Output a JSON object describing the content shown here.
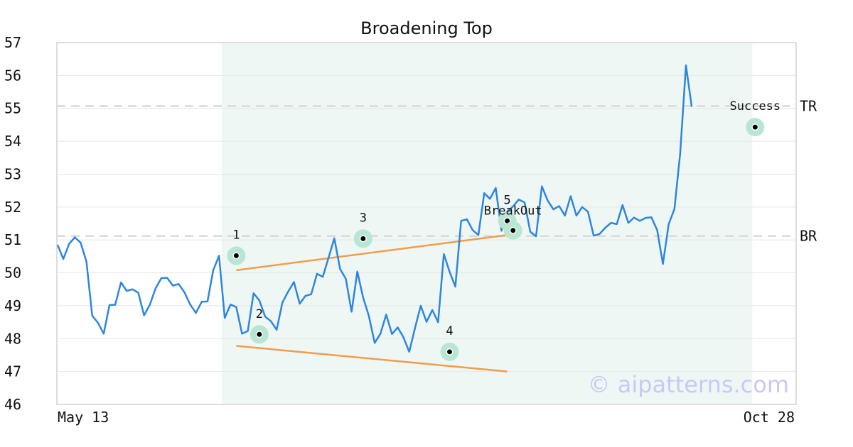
{
  "chart_data": {
    "type": "line",
    "title": "Broadening Top",
    "xlabel": "",
    "ylabel": "",
    "ylim": [
      46,
      57
    ],
    "yticks": [
      46,
      47,
      48,
      49,
      50,
      51,
      52,
      53,
      54,
      55,
      56,
      57
    ],
    "x_tick_labels": [
      "May 13",
      "Oct 28"
    ],
    "grid": true,
    "colors": {
      "price": "#2e86de",
      "trendline": "#f39c4a",
      "pattern_zone": "#eef7f3",
      "marker_halo": "#b9e6d2",
      "marker_dot": "#000000",
      "level_line": "#d9d9d9",
      "watermark": "#c9c9f5"
    },
    "series": [
      {
        "values": [
          50.85,
          50.42,
          50.88,
          51.08,
          50.92,
          50.34,
          48.7,
          48.48,
          48.15,
          49.02,
          49.03,
          49.71,
          49.45,
          49.5,
          49.4,
          48.71,
          49.03,
          49.53,
          49.84,
          49.85,
          49.61,
          49.66,
          49.41,
          49.04,
          48.78,
          49.12,
          49.13,
          50.08,
          50.52,
          48.63,
          49.04,
          48.96,
          48.15,
          48.23,
          49.38,
          49.16,
          48.67,
          48.53,
          48.27,
          49.1,
          49.43,
          49.72,
          49.06,
          49.3,
          49.35,
          49.97,
          49.88,
          50.46,
          51.05,
          50.12,
          49.82,
          48.82,
          50.04,
          49.25,
          48.69,
          47.87,
          48.15,
          48.73,
          48.14,
          48.34,
          48.04,
          47.6,
          48.32,
          49.0,
          48.51,
          48.87,
          48.5,
          50.57,
          50.03,
          49.58,
          51.58,
          51.63,
          51.3,
          51.15,
          52.42,
          52.25,
          52.58,
          51.28,
          51.86,
          52.02,
          52.23,
          52.14,
          51.25,
          51.11,
          52.63,
          52.2,
          51.93,
          52.03,
          51.74,
          52.33,
          51.74,
          52.0,
          51.86,
          51.13,
          51.18,
          51.37,
          51.52,
          51.48,
          52.06,
          51.52,
          51.68,
          51.58,
          51.67,
          51.69,
          51.3,
          50.27,
          51.48,
          51.94,
          53.64,
          56.31,
          55.05
        ]
      }
    ],
    "pattern_zone_index": [
      29,
      120
    ],
    "levels": [
      {
        "label": "TR",
        "value": 55.07
      },
      {
        "label": "BR",
        "value": 51.12
      }
    ],
    "trendlines": [
      {
        "from": [
          31,
          50.08
        ],
        "to": [
          78,
          51.15
        ]
      },
      {
        "from": [
          31,
          47.78
        ],
        "to": [
          78,
          47.0
        ]
      }
    ],
    "points": [
      {
        "label": "1",
        "index": 31,
        "value": 50.52
      },
      {
        "label": "2",
        "index": 35,
        "value": 48.13
      },
      {
        "label": "3",
        "index": 53,
        "value": 51.04
      },
      {
        "label": "4",
        "index": 68,
        "value": 47.6
      },
      {
        "label": "5",
        "index": 78,
        "value": 51.58
      },
      {
        "label": "BreakOut",
        "index": 79,
        "value": 51.29
      },
      {
        "label": "Success",
        "index": 121,
        "value": 54.43
      }
    ],
    "watermark": "© aipatterns.com"
  }
}
